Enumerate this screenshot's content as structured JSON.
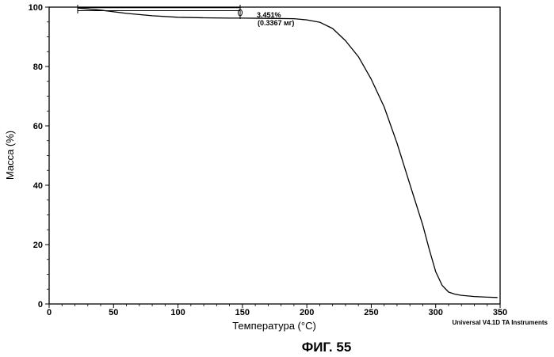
{
  "chart_data": {
    "type": "line",
    "xlabel": "Температура (°C)",
    "ylabel": "Масса (%)",
    "xlim": [
      0,
      350
    ],
    "ylim": [
      0,
      100
    ],
    "xticks": [
      0,
      50,
      100,
      150,
      200,
      250,
      300,
      350
    ],
    "yticks": [
      0,
      20,
      40,
      60,
      80,
      100
    ],
    "grid": false,
    "series": [
      {
        "x": [
          22,
          40,
          60,
          80,
          100,
          120,
          140,
          150,
          170,
          190,
          200,
          210,
          220,
          230,
          240,
          250,
          260,
          270,
          280,
          290,
          295,
          300,
          305,
          310,
          315,
          320,
          330,
          340,
          348
        ],
        "y": [
          99.7,
          99.0,
          97.9,
          97.1,
          96.6,
          96.4,
          96.3,
          96.3,
          96.2,
          96.1,
          95.7,
          94.9,
          92.8,
          88.7,
          83.3,
          75.7,
          66.4,
          54.2,
          40.3,
          26.5,
          18.4,
          10.9,
          6.3,
          4.0,
          3.3,
          2.9,
          2.5,
          2.3,
          2.2
        ]
      }
    ],
    "annotations": [
      {
        "text": "3.451%",
        "x": 147,
        "y": 98
      },
      {
        "text": "(0.3367 мг)",
        "x": 147,
        "y": 96
      }
    ]
  },
  "credit": "Universal V4.1D TA Instruments",
  "figure_label": "ФИГ. 55",
  "colors": {
    "line": "#000000",
    "background": "#ffffff"
  }
}
